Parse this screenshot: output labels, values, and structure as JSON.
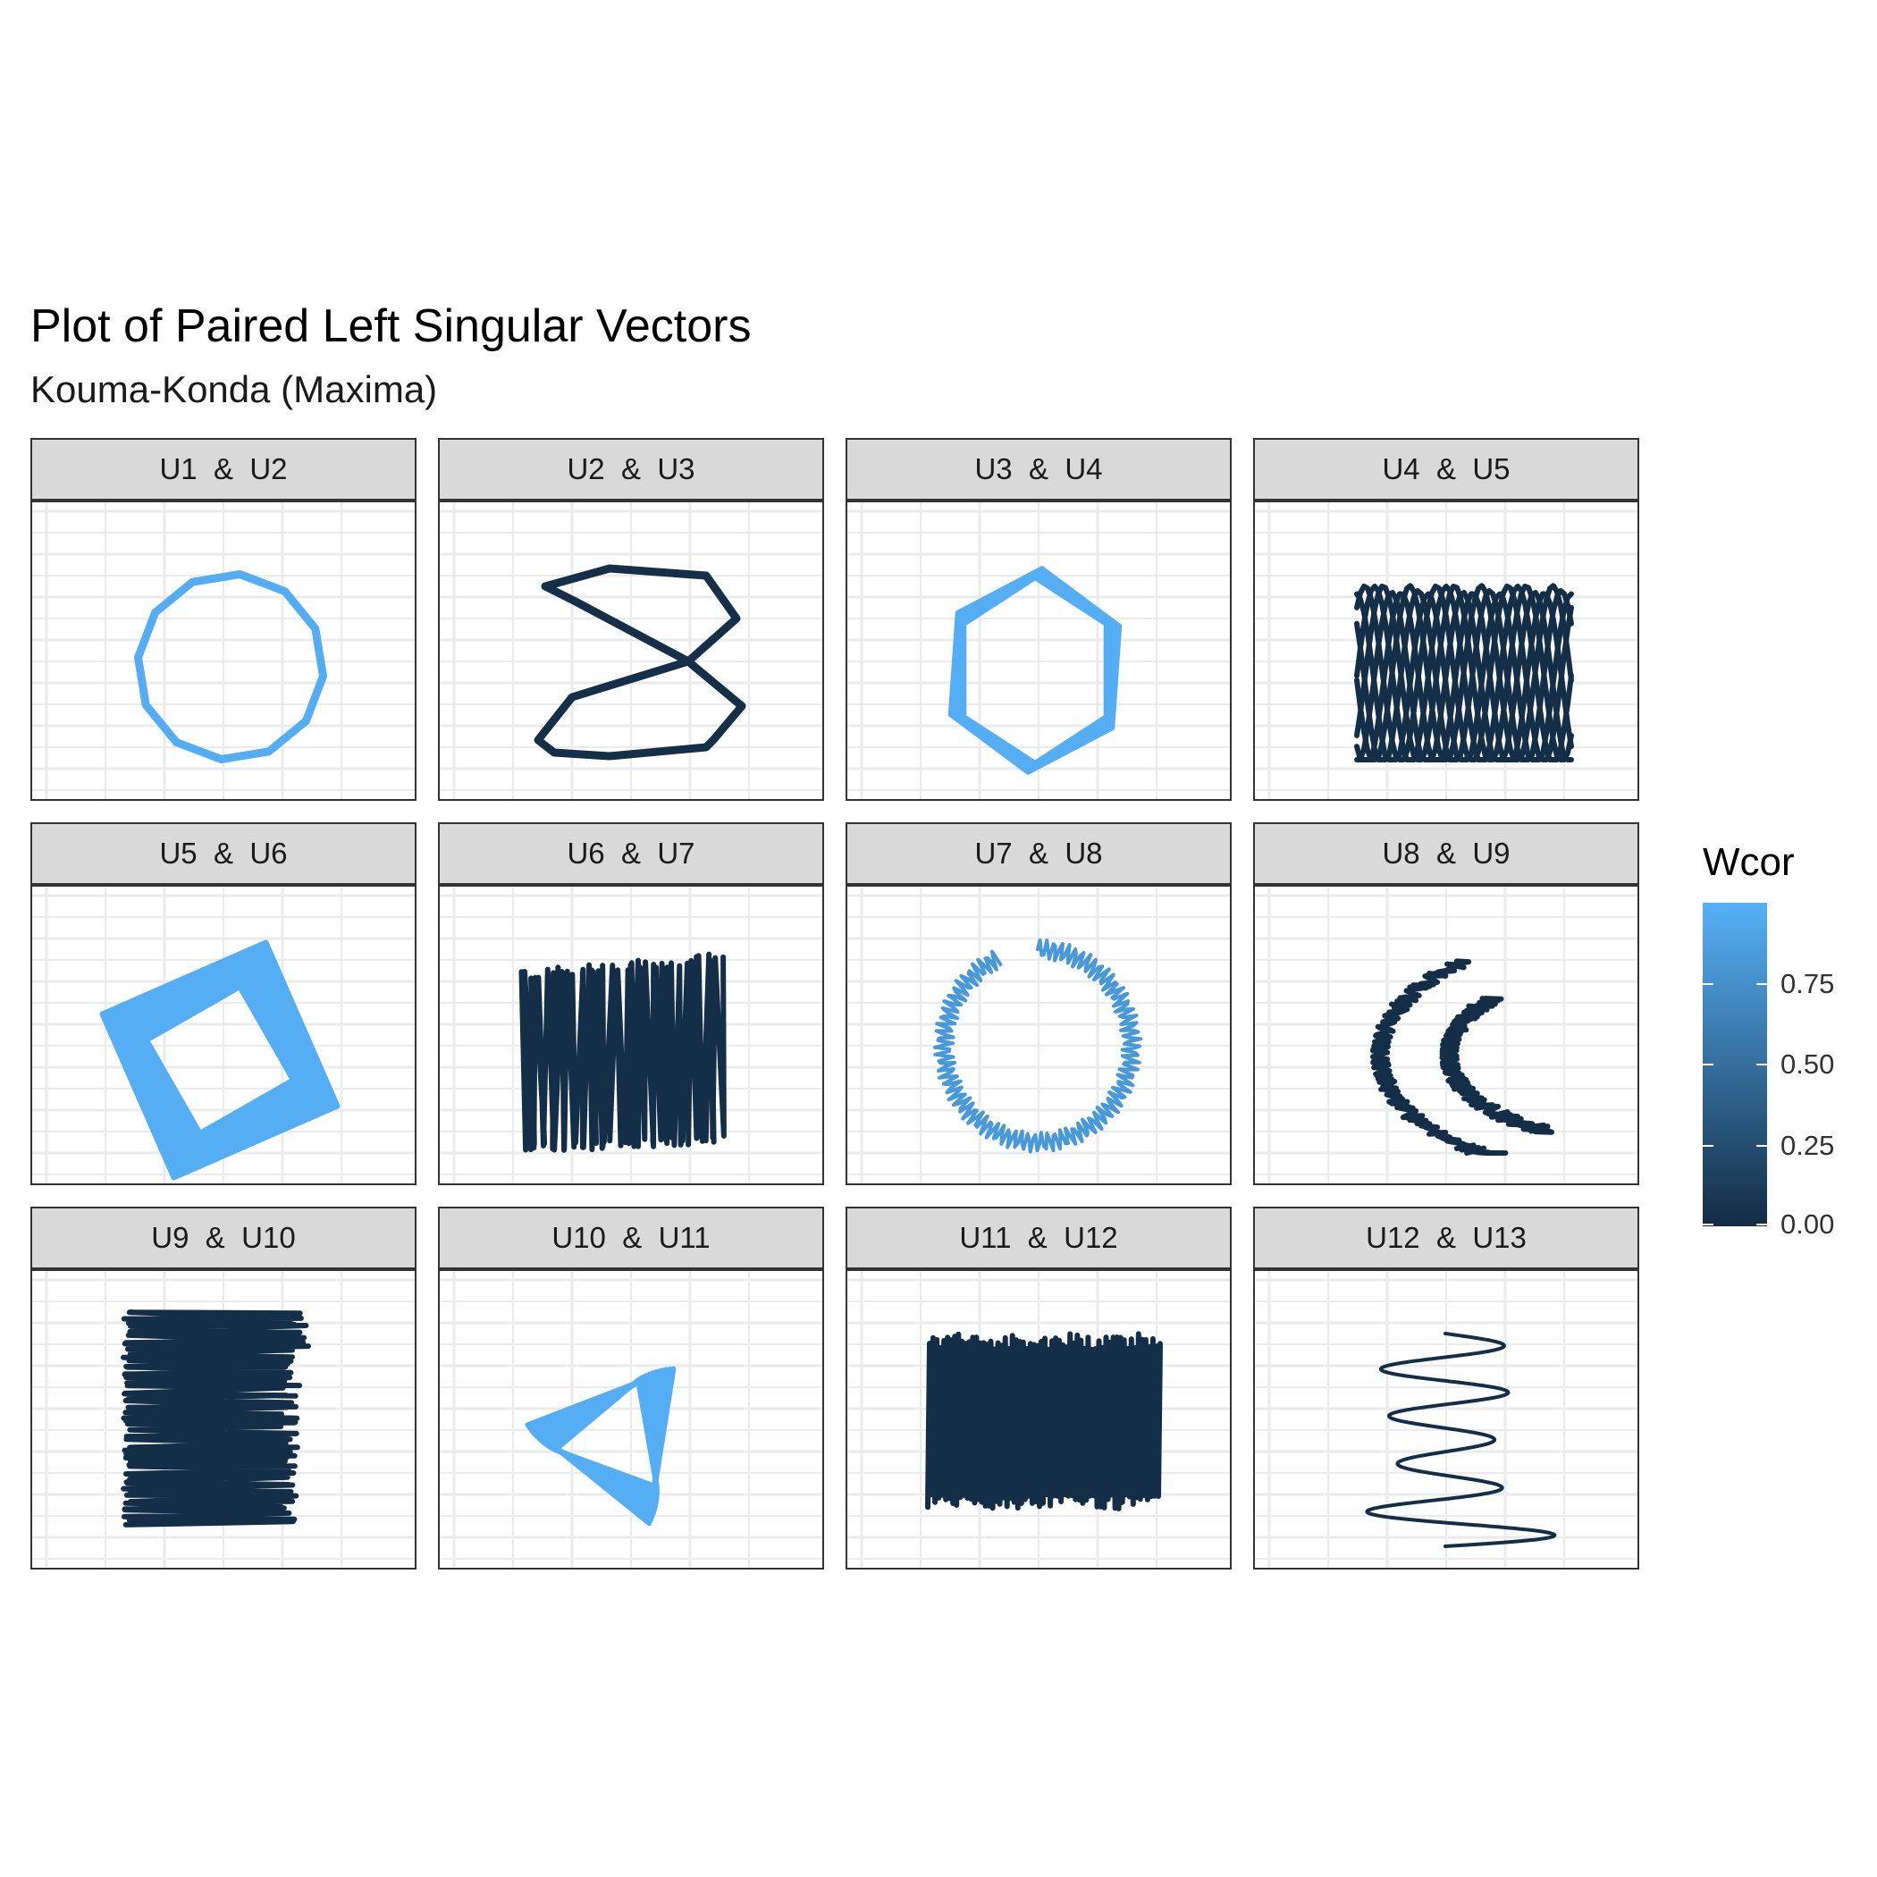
{
  "chart_data": {
    "type": "line",
    "title": "Plot of Paired Left Singular Vectors",
    "subtitle": "Kouma-Konda (Maxima)",
    "facet_labels": [
      "U1  &  U2",
      "U2  &  U3",
      "U3  &  U4",
      "U4  &  U5",
      "U5  &  U6",
      "U6  &  U7",
      "U7  &  U8",
      "U8  &  U9",
      "U9  &  U10",
      "U10  &  U11",
      "U11  &  U12",
      "U12  &  U13"
    ],
    "wcor": [
      0.97,
      0.03,
      0.98,
      0.02,
      0.98,
      0.02,
      0.82,
      0.02,
      0.02,
      0.98,
      0.02,
      0.02
    ],
    "grid": true,
    "legend": {
      "title": "Wcor",
      "position": "right",
      "range": [
        0,
        1
      ],
      "ticks": [
        "0.00",
        "0.25",
        "0.50",
        "0.75"
      ],
      "tick_values": [
        0,
        0.25,
        0.5,
        0.75
      ],
      "low_color": "#132b43",
      "high_color": "#56b1f7"
    }
  }
}
